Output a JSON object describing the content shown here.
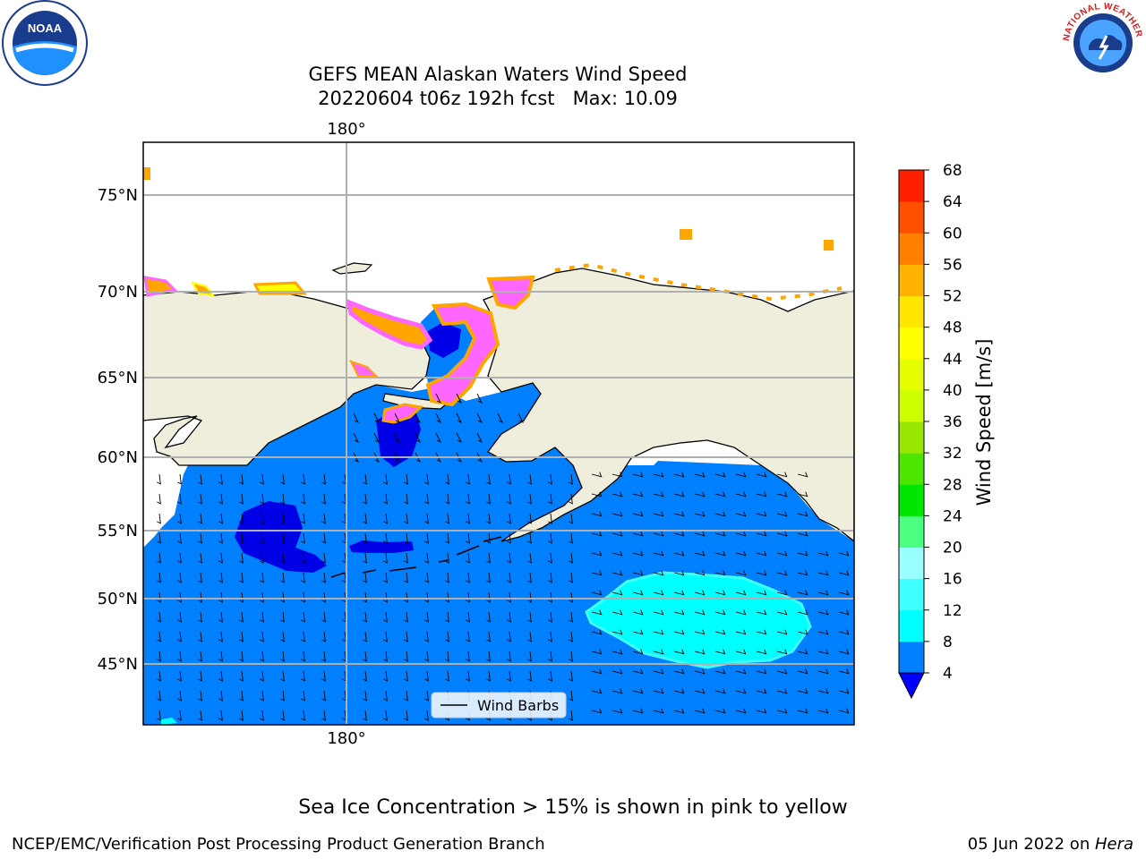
{
  "title": {
    "line1": "GEFS MEAN Alaskan Waters Wind Speed",
    "line2": "20220604 t06z 192h fcst   Max: 10.09"
  },
  "logos": {
    "left": {
      "icon": "noaa-logo",
      "text": "NOAA"
    },
    "right": {
      "icon": "nws-logo",
      "text": "NATIONAL WEATHER SERVICE"
    }
  },
  "map": {
    "lon_label_top": "180°",
    "lon_label_bottom": "180°",
    "lat_labels": [
      "75°N",
      "70°N",
      "65°N",
      "60°N",
      "55°N",
      "50°N",
      "45°N"
    ],
    "legend_label": "Wind Barbs",
    "colors": {
      "ocean": "#0080ff",
      "land": "#efeddc",
      "calm": "#0000e6",
      "cyan": "#00ffff",
      "ice": [
        "#ff66ff",
        "#ffa500",
        "#ffff00"
      ]
    }
  },
  "colorbar": {
    "label": "Wind Speed [m/s]",
    "ticks": [
      "4",
      "8",
      "12",
      "16",
      "20",
      "24",
      "28",
      "32",
      "36",
      "40",
      "44",
      "48",
      "52",
      "56",
      "60",
      "64",
      "68"
    ],
    "colors": [
      "#0080ff",
      "#00ffff",
      "#40ffff",
      "#99ffff",
      "#4dff80",
      "#00e600",
      "#4de600",
      "#99e600",
      "#ccff00",
      "#e6ff00",
      "#ffff00",
      "#ffe600",
      "#ffb300",
      "#ff8000",
      "#ff5000",
      "#ff2000"
    ],
    "extend_color": "#0000ff"
  },
  "footer": {
    "ice_note": "Sea Ice Concentration > 15% is shown in pink to yellow",
    "branch": "NCEP/EMC/Verification Post Processing Product Generation Branch",
    "date": "05 Jun 2022 on ",
    "machine": "Hera"
  }
}
